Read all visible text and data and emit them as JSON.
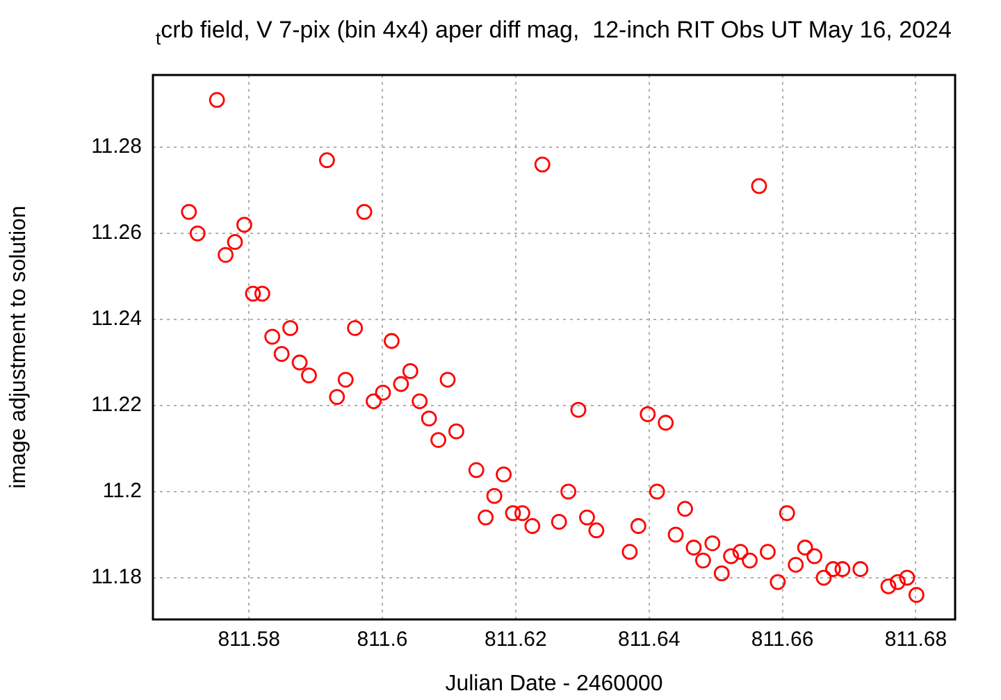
{
  "chart_data": {
    "type": "scatter",
    "title": "$_{t}$crb field, V 7-pix (bin 4x4) aper diff mag,  12-inch RIT Obs UT May 16, 2024",
    "xlabel": "Julian Date - 2460000",
    "ylabel": "image adjustment to solution",
    "xlim": [
      811.5656,
      811.6859
    ],
    "ylim": [
      11.1703,
      11.2968
    ],
    "xticks": [
      811.58,
      811.6,
      811.62,
      811.64,
      811.66,
      811.68
    ],
    "yticks": [
      11.18,
      11.2,
      11.22,
      11.24,
      11.26,
      11.28
    ],
    "grid": true,
    "legend": false,
    "marker": "circle",
    "series": [
      {
        "color": "#ff0000",
        "x": [
          811.571,
          811.5723,
          811.5752,
          811.5765,
          811.5779,
          811.5793,
          811.5806,
          811.582,
          811.5835,
          811.5849,
          811.5862,
          811.5876,
          811.589,
          811.5917,
          811.5932,
          811.5945,
          811.5959,
          811.5973,
          811.5987,
          811.6001,
          811.6014,
          811.6028,
          811.6042,
          811.6056,
          811.607,
          811.6084,
          811.6098,
          811.6111,
          811.6141,
          811.6155,
          811.6168,
          811.6182,
          811.6196,
          811.621,
          811.6225,
          811.624,
          811.6265,
          811.6279,
          811.6294,
          811.6307,
          811.6321,
          811.6371,
          811.6384,
          811.6398,
          811.6412,
          811.6425,
          811.644,
          811.6454,
          811.6467,
          811.6481,
          811.6495,
          811.6509,
          811.6523,
          811.6537,
          811.6551,
          811.6565,
          811.6578,
          811.6593,
          811.6607,
          811.662,
          811.6634,
          811.6648,
          811.6662,
          811.6676,
          811.669,
          811.6717,
          811.6759,
          811.6773,
          811.6787,
          811.6801
        ],
        "values": [
          11.265,
          11.26,
          11.291,
          11.255,
          11.258,
          11.262,
          11.246,
          11.246,
          11.236,
          11.232,
          11.238,
          11.23,
          11.227,
          11.277,
          11.222,
          11.226,
          11.238,
          11.265,
          11.221,
          11.223,
          11.235,
          11.225,
          11.228,
          11.221,
          11.217,
          11.212,
          11.226,
          11.214,
          11.205,
          11.194,
          11.199,
          11.204,
          11.195,
          11.195,
          11.192,
          11.276,
          11.193,
          11.2,
          11.219,
          11.194,
          11.191,
          11.186,
          11.192,
          11.218,
          11.2,
          11.216,
          11.19,
          11.196,
          11.187,
          11.184,
          11.188,
          11.181,
          11.185,
          11.186,
          11.184,
          11.271,
          11.186,
          11.179,
          11.195,
          11.183,
          11.187,
          11.185,
          11.18,
          11.182,
          11.182,
          11.182,
          11.178,
          11.179,
          11.18,
          11.176
        ]
      }
    ]
  }
}
